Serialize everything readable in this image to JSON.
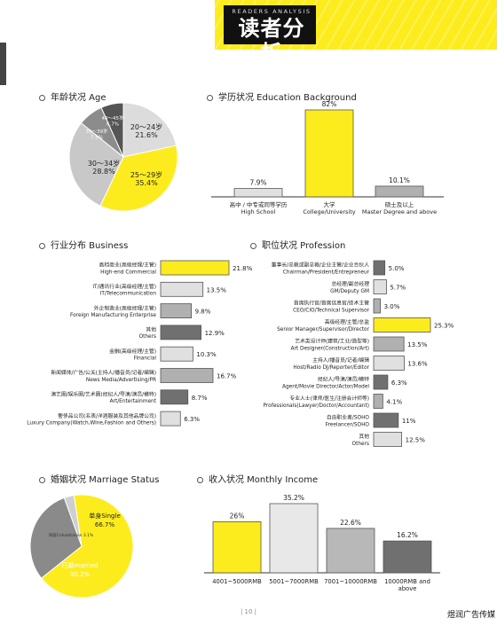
{
  "header": {
    "banner_sub": "READERS ANALYSIS",
    "banner_title": "读者分析",
    "banner_color": "#fdec1d"
  },
  "colors": {
    "yellow": "#fdec1d",
    "light_gray": "#dcdcdc",
    "mid_gray": "#b0b0b0",
    "dark_gray": "#707070",
    "outline": "#555555"
  },
  "sections": {
    "age": "年龄状况 Age",
    "education": "学历状况 Education Background",
    "business": "行业分布 Business",
    "profession": "职位状况 Profession",
    "marriage": "婚姻状况 Marriage Status",
    "income": "收入状况 Monthly Income"
  },
  "chart_data": [
    {
      "id": "age",
      "type": "pie",
      "slices": [
        {
          "label": "20～24岁",
          "value": 21.6,
          "pct": "21.6%",
          "color": "#dcdcdc"
        },
        {
          "label": "25～29岁",
          "value": 35.4,
          "pct": "35.4%",
          "color": "#fdec1d"
        },
        {
          "label": "30～34岁",
          "value": 28.8,
          "pct": "28.8%",
          "color": "#c8c8c8"
        },
        {
          "label": "35～39岁",
          "value": 7.5,
          "pct": "7.5%",
          "color": "#8c8c8c"
        },
        {
          "label": "40～45岁",
          "value": 6.7,
          "pct": "6.7%",
          "color": "#555555"
        }
      ]
    },
    {
      "id": "education",
      "type": "bar",
      "categories": [
        "高中 / 中专或同等学历\nHigh School",
        "大学\nCollege/University",
        "硕士及以上\nMaster Degree and above"
      ],
      "values": [
        7.9,
        82,
        10.1
      ],
      "value_labels": [
        "7.9%",
        "82%",
        "10.1%"
      ],
      "colors": [
        "#e0e0e0",
        "#fdec1d",
        "#b0b0b0"
      ]
    },
    {
      "id": "business",
      "type": "bar",
      "orientation": "horizontal",
      "categories": [
        "高档商业(高级经理/主管)\nHigh-end Commercial",
        "IT/通讯行业(高级经理/主管)\nIT/Telecommunication",
        "外企制造业(高级经理/主管)\nForeign Manufacturing Enterprise",
        "其他\nOthers",
        "金融(高级经理/主管)\nFinancial",
        "新闻媒体/广告/公关(主持人/播音员/记者/编辑)\nNews Media/Advertising/PR",
        "演艺圈/娱乐圈/艺术圈(经纪人/导演/演员/模特)\nArt/Entertainment",
        "奢侈品公司(名表/洋酒服装及其他品牌公司)\nLuxury Company(Watch,Wine,Fashion and Others)"
      ],
      "values": [
        21.8,
        13.5,
        9.8,
        12.9,
        10.3,
        16.7,
        8.7,
        6.3
      ],
      "value_labels": [
        "21.8%",
        "13.5%",
        "9.8%",
        "12.9%",
        "10.3%",
        "16.7%",
        "8.7%",
        "6.3%"
      ],
      "colors": [
        "#fdec1d",
        "#e0e0e0",
        "#b0b0b0",
        "#707070",
        "#e0e0e0",
        "#b0b0b0",
        "#707070",
        "#e0e0e0"
      ]
    },
    {
      "id": "profession",
      "type": "bar",
      "orientation": "horizontal",
      "categories": [
        "董事长/总裁或副总裁/企业主管/企业合伙人\nChairman/President/Entrepreneur",
        "总经理/副总经理\nGM/Deputy GM",
        "首席执行官/首席信息官/技术主管\nCEO/CIO/Technical Supervisor",
        "高级经理/主管/总监\nSenior Manager/Supervisor/Director",
        "艺术类设计师(建筑/工业/造型等)\nArt Designer(Construction/Art)",
        "主持人/播音员/记者/编辑\nHost/Radio DJ/Reporter/Editor",
        "经纪人/导演/演员/模特\nAgent/Movie Director/Actor/Model",
        "专业人士(律师/医生/注册会计师等)\nProfessionals(Lawyer/Doctor/Accountant)",
        "自由职业者/SOHO\nFreelancer/SOHO",
        "其他\nOthers"
      ],
      "values": [
        5.0,
        5.7,
        3.0,
        25.3,
        13.5,
        13.6,
        6.3,
        4.1,
        11,
        12.5
      ],
      "value_labels": [
        "5.0%",
        "5.7%",
        "3.0%",
        "25.3%",
        "13.5%",
        "13.6%",
        "6.3%",
        "4.1%",
        "11%",
        "12.5%"
      ],
      "colors": [
        "#707070",
        "#e0e0e0",
        "#b0b0b0",
        "#fdec1d",
        "#b0b0b0",
        "#e0e0e0",
        "#707070",
        "#b0b0b0",
        "#707070",
        "#e0e0e0"
      ]
    },
    {
      "id": "marriage",
      "type": "pie",
      "slices": [
        {
          "label": "单身Single",
          "value": 66.7,
          "pct": "66.7%",
          "color": "#fdec1d"
        },
        {
          "label": "已婚married",
          "value": 30.2,
          "pct": "30.2%",
          "color": "#8a8a8a"
        },
        {
          "label": "同居Cohabitation",
          "value": 3.1,
          "pct": "3.1%",
          "color": "#cfcfcf"
        }
      ]
    },
    {
      "id": "income",
      "type": "bar",
      "categories": [
        "4001~5000RMB",
        "5001~7000RMB",
        "7001~10000RMB",
        "10000RMB and\nabove"
      ],
      "values": [
        26,
        35.2,
        22.6,
        16.2
      ],
      "value_labels": [
        "26%",
        "35.2%",
        "22.6%",
        "16.2%"
      ],
      "colors": [
        "#fdec1d",
        "#e8e8e8",
        "#b8b8b8",
        "#707070"
      ]
    }
  ],
  "footer": {
    "page_number": "| 10 |",
    "brand": "煜润广告传媒"
  }
}
